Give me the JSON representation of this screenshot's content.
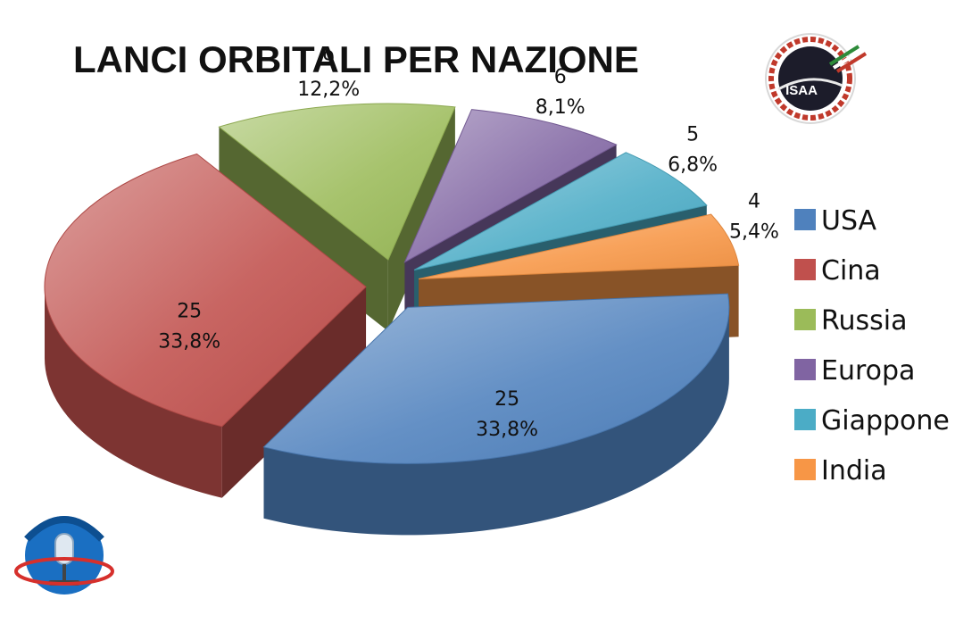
{
  "chart_data": {
    "type": "pie",
    "title": "LANCI ORBITALI PER NAZIONE",
    "categories": [
      "USA",
      "Cina",
      "Russia",
      "Europa",
      "Giappone",
      "India"
    ],
    "values": [
      25,
      25,
      9,
      6,
      5,
      4
    ],
    "value_labels": [
      "25",
      "25",
      "9",
      "6",
      "5",
      "4"
    ],
    "percent_labels": [
      "33,8%",
      "33,8%",
      "12,2%",
      "8,1%",
      "6,8%",
      "5,4%"
    ],
    "colors": [
      "#4f81bd",
      "#c0504d",
      "#9bbb59",
      "#8064a2",
      "#4bacc6",
      "#f79646"
    ],
    "legend_position": "right",
    "style": "3d-exploded"
  },
  "logos": {
    "top_right": {
      "icon": "isaa-logo-icon",
      "text": "ISAA"
    },
    "bottom_left": {
      "icon": "radio-microphone-logo-icon"
    }
  }
}
